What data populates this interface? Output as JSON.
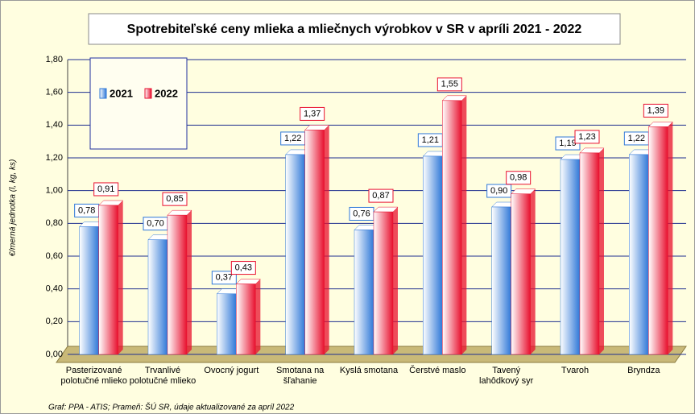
{
  "chart_data": {
    "type": "bar",
    "title": "Spotrebiteľské ceny mlieka a mliečnych výrobkov v SR v apríli 2021 - 2022",
    "y_label": "€/merná jednotka (l, kg, ks)",
    "footnote": "Graf: PPA - ATIS; Prameň: ŠÚ SR, údaje aktualizované za apríl 2022",
    "categories": [
      "Pasterizované polotučné mlieko",
      "Trvanlivé polotučné mlieko",
      "Ovocný jogurt",
      "Smotana na šľahanie",
      "Kyslá smotana",
      "Čerstvé maslo",
      "Tavený lahôdkový syr",
      "Tvaroh",
      "Bryndza"
    ],
    "series": [
      {
        "name": "2021",
        "color": "#2f78d8",
        "values": [
          0.78,
          0.7,
          0.37,
          1.22,
          0.76,
          1.21,
          0.9,
          1.19,
          1.22
        ],
        "value_labels": [
          "0,78",
          "0,70",
          "0,37",
          "1,22",
          "0,76",
          "1,21",
          "0,90",
          "1,19",
          "1,22"
        ]
      },
      {
        "name": "2022",
        "color": "#e8102e",
        "values": [
          0.91,
          0.85,
          0.43,
          1.37,
          0.87,
          1.55,
          0.98,
          1.23,
          1.39
        ],
        "value_labels": [
          "0,91",
          "0,85",
          "0,43",
          "1,37",
          "0,87",
          "1,55",
          "0,98",
          "1,23",
          "1,39"
        ]
      }
    ],
    "ylim": [
      0,
      1.8
    ],
    "yticks": [
      {
        "value": 0,
        "label": "0,00"
      },
      {
        "value": 0.2,
        "label": "0,20"
      },
      {
        "value": 0.4,
        "label": "0,40"
      },
      {
        "value": 0.6,
        "label": "0,60"
      },
      {
        "value": 0.8,
        "label": "0,80"
      },
      {
        "value": 1.0,
        "label": "1,00"
      },
      {
        "value": 1.2,
        "label": "1,20"
      },
      {
        "value": 1.4,
        "label": "1,40"
      },
      {
        "value": 1.6,
        "label": "1,60"
      },
      {
        "value": 1.8,
        "label": "1,80"
      }
    ],
    "grid": true,
    "legend": "top-left"
  }
}
